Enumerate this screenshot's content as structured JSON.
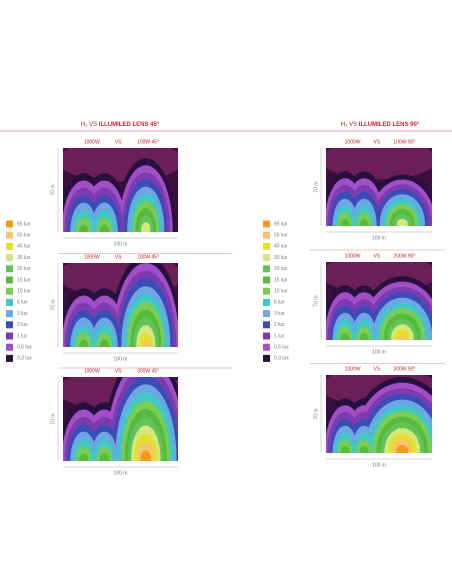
{
  "columns": [
    {
      "title_prefix": "H₂ VS",
      "title": "ILLUMILED LENS 45°",
      "legend": [
        {
          "label": "65 lux",
          "color": "#f39a1c"
        },
        {
          "label": "50 lux",
          "color": "#f6c36e"
        },
        {
          "label": "40 lux",
          "color": "#e6e02c"
        },
        {
          "label": "30 lux",
          "color": "#d3e77a"
        },
        {
          "label": "20 lux",
          "color": "#62c25c"
        },
        {
          "label": "15 lux",
          "color": "#56bb3a"
        },
        {
          "label": "10 lux",
          "color": "#7acd52"
        },
        {
          "label": "5 lux",
          "color": "#3fc8c6"
        },
        {
          "label": "3 lux",
          "color": "#6ea6e4"
        },
        {
          "label": "2 lux",
          "color": "#3a4db6"
        },
        {
          "label": "1 lux",
          "color": "#7c3cb0"
        },
        {
          "label": "0.5 lux",
          "color": "#a24ec6"
        },
        {
          "label": "0.3 lux",
          "color": "#2a1040"
        }
      ],
      "panels": [
        {
          "left": "1000W",
          "vs": "VS",
          "right": "100W 45°",
          "height": "70 m",
          "width": "100 m"
        },
        {
          "left": "1000W",
          "vs": "VS",
          "right": "200W 45°",
          "height": "70 m",
          "width": "100 m"
        },
        {
          "left": "1000W",
          "vs": "VS",
          "right": "300W 45°",
          "height": "70 m",
          "width": "100 m"
        }
      ]
    },
    {
      "title_prefix": "H₂ VS",
      "title": "ILLUMILED LENS 90°",
      "legend": [
        {
          "label": "65 lux",
          "color": "#f39a1c"
        },
        {
          "label": "50 lux",
          "color": "#f6c36e"
        },
        {
          "label": "40 lux",
          "color": "#e6e02c"
        },
        {
          "label": "30 lux",
          "color": "#d3e77a"
        },
        {
          "label": "20 lux",
          "color": "#62c25c"
        },
        {
          "label": "15 lux",
          "color": "#56bb3a"
        },
        {
          "label": "10 lux",
          "color": "#7acd52"
        },
        {
          "label": "5 lux",
          "color": "#3fc8c6"
        },
        {
          "label": "3 lux",
          "color": "#6ea6e4"
        },
        {
          "label": "2 lux",
          "color": "#3a4db6"
        },
        {
          "label": "1 lux",
          "color": "#7c3cb0"
        },
        {
          "label": "0.5 lux",
          "color": "#a24ec6"
        },
        {
          "label": "0.3 lux",
          "color": "#2a1040"
        }
      ],
      "panels": [
        {
          "left": "1000W",
          "vs": "VS",
          "right": "100W 90°",
          "height": "70 m",
          "width": "100 m"
        },
        {
          "left": "1000W",
          "vs": "VS",
          "right": "200W 90°",
          "height": "70 m",
          "width": "100 m"
        },
        {
          "left": "1000W",
          "vs": "VS",
          "right": "300W 90°",
          "height": "70 m",
          "width": "100 m"
        }
      ]
    }
  ]
}
